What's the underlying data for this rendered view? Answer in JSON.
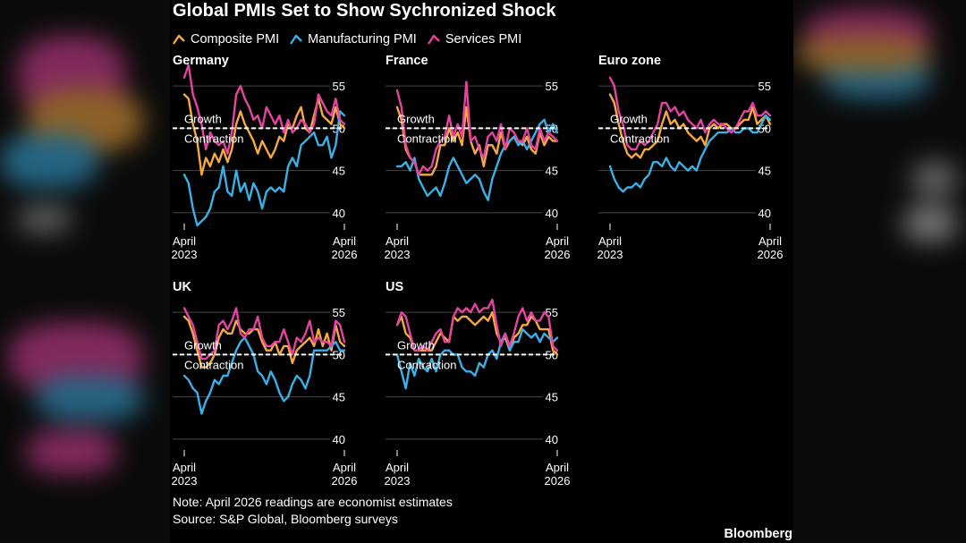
{
  "title": "Global PMIs Set to Show Sychronized Shock",
  "colors": {
    "composite": "#f7a940",
    "manufacturing": "#3ab0e6",
    "services": "#e4449f",
    "threshold": "#ffffff",
    "gridline": "#444444"
  },
  "legend": [
    {
      "key": "composite",
      "label": "Composite PMI",
      "icon": "composite-swatch-icon"
    },
    {
      "key": "manufacturing",
      "label": "Manufacturing PMI",
      "icon": "manufacturing-swatch-icon"
    },
    {
      "key": "services",
      "label": "Services PMI",
      "icon": "services-swatch-icon"
    }
  ],
  "threshold_labels": {
    "growth": "Growth",
    "contraction": "Contraction"
  },
  "x_tick_labels": {
    "start": [
      "April",
      "2023"
    ],
    "end": [
      "April",
      "2026"
    ]
  },
  "footer": {
    "note": "Note: April 2026 readings are economist estimates",
    "source": "Source: S&P Global, Bloomberg surveys",
    "brand": "Bloomberg"
  },
  "chart_data": [
    {
      "type": "line",
      "title": "Germany",
      "y_ticks": [
        55,
        50,
        45,
        40
      ],
      "ylim": [
        38.5,
        56.5
      ],
      "threshold": 50,
      "x_start": "April 2023",
      "x_end": "April 2026",
      "series": [
        {
          "name": "Composite PMI",
          "values": [
            54.0,
            53.5,
            50.5,
            48.5,
            44.5,
            46.5,
            45.5,
            47.0,
            46.0,
            47.5,
            46.0,
            47.5,
            50.5,
            52.0,
            50.5,
            49.5,
            48.5,
            47.0,
            48.5,
            47.5,
            46.5,
            47.5,
            49.0,
            48.5,
            50.5,
            50.0,
            51.5,
            52.5,
            50.0,
            49.5,
            51.5,
            53.5,
            51.5,
            51.0,
            50.5,
            52.5,
            50.5,
            50.0
          ]
        },
        {
          "name": "Manufacturing PMI",
          "values": [
            44.5,
            43.5,
            40.5,
            38.5,
            39.0,
            39.5,
            40.5,
            42.5,
            43.0,
            45.5,
            42.5,
            42.0,
            45.0,
            42.5,
            43.5,
            41.5,
            43.5,
            42.5,
            40.5,
            42.5,
            43.0,
            42.5,
            43.0,
            42.5,
            45.5,
            46.5,
            45.5,
            48.0,
            48.5,
            49.0,
            49.5,
            48.0,
            48.0,
            49.0,
            46.5,
            48.0,
            52.0,
            51.5
          ]
        },
        {
          "name": "Services PMI",
          "values": [
            56.0,
            57.5,
            54.0,
            52.5,
            50.5,
            47.5,
            49.5,
            48.5,
            48.0,
            48.5,
            47.0,
            49.5,
            54.0,
            55.0,
            53.5,
            52.5,
            51.0,
            51.5,
            50.0,
            52.5,
            51.5,
            50.5,
            51.5,
            49.5,
            51.0,
            49.5,
            50.0,
            51.0,
            50.5,
            49.5,
            50.5,
            54.0,
            53.0,
            52.0,
            51.5,
            53.5,
            51.0,
            50.5
          ]
        }
      ]
    },
    {
      "type": "line",
      "title": "France",
      "y_ticks": [
        55,
        50,
        45,
        40
      ],
      "ylim": [
        38.5,
        56.5
      ],
      "threshold": 50,
      "x_start": "April 2023",
      "x_end": "April 2026",
      "series": [
        {
          "name": "Composite PMI",
          "values": [
            52.5,
            51.0,
            47.5,
            46.5,
            46.0,
            44.5,
            44.5,
            44.5,
            44.5,
            45.5,
            48.0,
            48.0,
            50.0,
            48.5,
            49.5,
            48.0,
            52.5,
            48.5,
            47.0,
            48.0,
            45.5,
            48.0,
            48.0,
            47.0,
            49.5,
            47.5,
            48.5,
            49.0,
            48.5,
            48.0,
            49.0,
            47.5,
            47.0,
            49.5,
            48.0,
            49.0,
            48.5,
            48.5
          ]
        },
        {
          "name": "Manufacturing PMI",
          "values": [
            45.5,
            45.5,
            46.0,
            45.0,
            46.5,
            44.0,
            43.0,
            42.0,
            42.5,
            43.0,
            42.0,
            43.5,
            45.5,
            46.5,
            45.5,
            44.5,
            43.5,
            44.0,
            44.5,
            44.0,
            42.5,
            41.5,
            44.0,
            45.5,
            47.0,
            48.0,
            48.5,
            49.0,
            48.0,
            48.5,
            47.5,
            48.5,
            49.5,
            50.5,
            51.0,
            49.5,
            50.5,
            49.5
          ]
        },
        {
          "name": "Services PMI",
          "values": [
            54.5,
            52.5,
            48.0,
            46.5,
            46.0,
            44.5,
            45.5,
            45.0,
            45.5,
            47.5,
            48.5,
            49.0,
            51.5,
            49.0,
            50.5,
            49.0,
            55.5,
            48.5,
            49.0,
            47.5,
            46.5,
            49.0,
            49.5,
            48.5,
            50.5,
            47.5,
            50.0,
            49.5,
            48.5,
            48.5,
            50.0,
            48.0,
            47.5,
            50.0,
            48.5,
            49.5,
            49.0,
            48.5
          ]
        }
      ]
    },
    {
      "type": "line",
      "title": "Euro zone",
      "y_ticks": [
        55,
        50,
        45,
        40
      ],
      "ylim": [
        38.5,
        56.5
      ],
      "threshold": 50,
      "x_start": "April 2023",
      "x_end": "April 2026",
      "series": [
        {
          "name": "Composite PMI",
          "values": [
            54.0,
            53.0,
            50.5,
            48.5,
            47.0,
            46.5,
            47.0,
            46.5,
            47.5,
            47.5,
            48.0,
            48.5,
            50.5,
            52.0,
            50.5,
            51.0,
            50.0,
            50.5,
            49.5,
            49.0,
            48.5,
            49.0,
            48.0,
            50.0,
            50.5,
            50.0,
            50.5,
            50.5,
            50.0,
            50.0,
            50.5,
            51.0,
            51.0,
            52.5,
            50.5,
            51.0,
            51.5,
            50.5
          ]
        },
        {
          "name": "Manufacturing PMI",
          "values": [
            45.5,
            44.0,
            43.0,
            42.5,
            43.0,
            43.0,
            43.5,
            43.0,
            44.0,
            44.5,
            46.0,
            46.0,
            45.5,
            46.5,
            45.5,
            45.0,
            46.0,
            45.5,
            45.0,
            45.5,
            45.0,
            46.5,
            47.5,
            48.5,
            49.0,
            49.5,
            49.5,
            49.5,
            50.0,
            49.5,
            49.5,
            50.0,
            50.0,
            49.5,
            49.5,
            50.5,
            51.5,
            51.0
          ]
        },
        {
          "name": "Services PMI",
          "values": [
            56.0,
            55.0,
            52.0,
            50.5,
            48.0,
            47.5,
            47.5,
            48.5,
            48.0,
            48.5,
            49.5,
            50.5,
            53.0,
            53.0,
            52.0,
            52.5,
            51.5,
            52.0,
            51.0,
            50.5,
            50.0,
            51.0,
            49.5,
            50.5,
            51.0,
            50.5,
            50.5,
            50.0,
            49.5,
            50.0,
            51.0,
            52.0,
            52.0,
            53.0,
            51.5,
            51.5,
            52.0,
            51.5
          ]
        }
      ]
    },
    {
      "type": "line",
      "title": "UK",
      "y_ticks": [
        55,
        50,
        45,
        40
      ],
      "ylim": [
        38.5,
        56.5
      ],
      "threshold": 50,
      "x_start": "April 2023",
      "x_end": "April 2026",
      "series": [
        {
          "name": "Composite PMI",
          "values": [
            54.5,
            54.0,
            52.5,
            50.5,
            48.5,
            48.5,
            49.0,
            50.0,
            52.0,
            53.0,
            52.5,
            52.5,
            54.0,
            53.0,
            52.5,
            52.5,
            53.0,
            53.0,
            51.5,
            50.5,
            50.5,
            51.5,
            50.0,
            51.0,
            51.0,
            49.0,
            50.5,
            51.0,
            51.5,
            52.0,
            51.0,
            53.0,
            51.0,
            52.5,
            50.5,
            53.5,
            51.5,
            51.0
          ]
        },
        {
          "name": "Manufacturing PMI",
          "values": [
            47.5,
            47.0,
            46.0,
            45.5,
            43.0,
            44.5,
            45.5,
            47.0,
            46.5,
            47.5,
            47.5,
            49.0,
            50.5,
            51.5,
            52.0,
            51.0,
            50.0,
            48.0,
            47.5,
            46.5,
            48.0,
            47.0,
            45.5,
            44.5,
            45.0,
            46.5,
            47.5,
            47.0,
            46.0,
            47.5,
            50.5,
            50.5,
            50.5,
            50.5,
            51.0,
            51.5,
            50.5,
            50.5
          ]
        },
        {
          "name": "Services PMI",
          "values": [
            55.5,
            54.5,
            53.5,
            51.5,
            49.5,
            49.5,
            50.0,
            50.5,
            53.5,
            54.0,
            53.0,
            54.0,
            55.5,
            52.5,
            52.0,
            53.0,
            53.0,
            54.5,
            52.0,
            51.0,
            51.0,
            51.5,
            51.5,
            53.0,
            51.5,
            50.0,
            52.0,
            51.5,
            52.5,
            54.0,
            51.5,
            52.0,
            51.5,
            51.5,
            51.0,
            54.0,
            53.5,
            51.5
          ]
        }
      ]
    },
    {
      "type": "line",
      "title": "US",
      "y_ticks": [
        55,
        50,
        45,
        40
      ],
      "ylim": [
        38.5,
        56.5
      ],
      "threshold": 50,
      "x_start": "April 2023",
      "x_end": "April 2026",
      "series": [
        {
          "name": "Composite PMI",
          "values": [
            53.5,
            54.5,
            52.5,
            52.0,
            50.5,
            50.5,
            50.5,
            50.5,
            50.5,
            51.5,
            52.5,
            52.0,
            51.5,
            54.5,
            54.0,
            54.5,
            54.5,
            54.0,
            53.5,
            54.0,
            54.5,
            54.0,
            55.0,
            52.5,
            51.5,
            52.0,
            50.5,
            52.0,
            52.5,
            53.5,
            53.5,
            54.5,
            54.0,
            53.0,
            53.0,
            53.0,
            50.5,
            50.0
          ]
        },
        {
          "name": "Manufacturing PMI",
          "values": [
            50.0,
            48.0,
            46.0,
            49.0,
            47.5,
            49.5,
            48.5,
            48.0,
            49.5,
            48.0,
            50.0,
            50.5,
            50.5,
            50.0,
            50.0,
            48.5,
            48.0,
            48.0,
            47.5,
            49.0,
            48.5,
            50.0,
            50.5,
            49.5,
            51.5,
            52.5,
            50.5,
            51.5,
            51.5,
            53.0,
            52.5,
            52.0,
            52.5,
            51.5,
            52.5,
            52.0,
            51.5,
            52.0
          ]
        },
        {
          "name": "Services PMI",
          "values": [
            53.5,
            55.0,
            54.5,
            52.5,
            50.5,
            50.5,
            51.0,
            50.5,
            51.5,
            52.5,
            53.0,
            51.5,
            51.5,
            54.5,
            55.5,
            55.0,
            55.5,
            55.0,
            56.0,
            55.0,
            55.5,
            55.5,
            56.5,
            53.5,
            51.0,
            52.5,
            51.0,
            52.5,
            54.5,
            55.5,
            54.0,
            55.0,
            54.0,
            54.0,
            55.0,
            54.5,
            51.0,
            50.5
          ]
        }
      ]
    }
  ]
}
